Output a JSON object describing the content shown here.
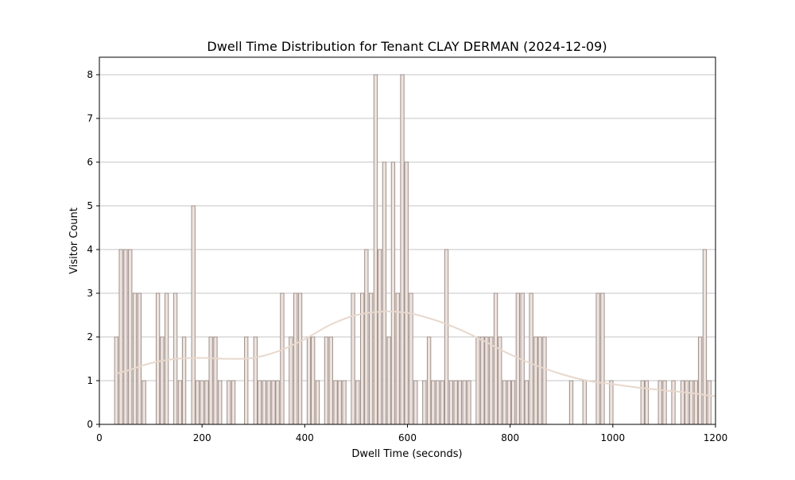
{
  "chart_data": {
    "type": "bar",
    "subtype": "histogram-with-density-curve",
    "title": "Dwell Time Distribution for Tenant CLAY DERMAN (2024-12-09)",
    "xlabel": "Dwell Time (seconds)",
    "ylabel": "Visitor Count",
    "xlim": [
      0,
      1200
    ],
    "ylim": [
      0,
      8.4
    ],
    "xticks": [
      0,
      200,
      400,
      600,
      800,
      1000,
      1200
    ],
    "yticks": [
      0,
      1,
      2,
      3,
      4,
      5,
      6,
      7,
      8
    ],
    "grid": "horizontal",
    "bin_width": 8.6,
    "colors": {
      "bar_fill": "#efe3de",
      "bar_edge": "#9e918d",
      "curve": "#e8d8cd",
      "grid": "#c4c4c4"
    },
    "bins": [
      {
        "x": 33,
        "count": 2
      },
      {
        "x": 42,
        "count": 4
      },
      {
        "x": 51,
        "count": 4
      },
      {
        "x": 60,
        "count": 4
      },
      {
        "x": 69,
        "count": 3
      },
      {
        "x": 78,
        "count": 3
      },
      {
        "x": 87,
        "count": 1
      },
      {
        "x": 114,
        "count": 3
      },
      {
        "x": 122,
        "count": 2
      },
      {
        "x": 131,
        "count": 3
      },
      {
        "x": 148,
        "count": 3
      },
      {
        "x": 157,
        "count": 1
      },
      {
        "x": 165,
        "count": 2
      },
      {
        "x": 183,
        "count": 5
      },
      {
        "x": 191,
        "count": 1
      },
      {
        "x": 200,
        "count": 1
      },
      {
        "x": 209,
        "count": 1
      },
      {
        "x": 217,
        "count": 2
      },
      {
        "x": 226,
        "count": 2
      },
      {
        "x": 235,
        "count": 1
      },
      {
        "x": 252,
        "count": 1
      },
      {
        "x": 261,
        "count": 1
      },
      {
        "x": 286,
        "count": 2
      },
      {
        "x": 304,
        "count": 2
      },
      {
        "x": 312,
        "count": 1
      },
      {
        "x": 321,
        "count": 1
      },
      {
        "x": 330,
        "count": 1
      },
      {
        "x": 339,
        "count": 1
      },
      {
        "x": 347,
        "count": 1
      },
      {
        "x": 356,
        "count": 3
      },
      {
        "x": 373,
        "count": 2
      },
      {
        "x": 382,
        "count": 3
      },
      {
        "x": 391,
        "count": 3
      },
      {
        "x": 408,
        "count": 2
      },
      {
        "x": 416,
        "count": 2
      },
      {
        "x": 425,
        "count": 1
      },
      {
        "x": 442,
        "count": 2
      },
      {
        "x": 451,
        "count": 2
      },
      {
        "x": 460,
        "count": 1
      },
      {
        "x": 468,
        "count": 1
      },
      {
        "x": 477,
        "count": 1
      },
      {
        "x": 494,
        "count": 3
      },
      {
        "x": 503,
        "count": 1
      },
      {
        "x": 512,
        "count": 3
      },
      {
        "x": 520,
        "count": 4
      },
      {
        "x": 529,
        "count": 3
      },
      {
        "x": 538,
        "count": 8
      },
      {
        "x": 546,
        "count": 4
      },
      {
        "x": 555,
        "count": 6
      },
      {
        "x": 564,
        "count": 2
      },
      {
        "x": 572,
        "count": 6
      },
      {
        "x": 581,
        "count": 3
      },
      {
        "x": 590,
        "count": 8
      },
      {
        "x": 598,
        "count": 6
      },
      {
        "x": 607,
        "count": 3
      },
      {
        "x": 616,
        "count": 1
      },
      {
        "x": 633,
        "count": 1
      },
      {
        "x": 642,
        "count": 2
      },
      {
        "x": 650,
        "count": 1
      },
      {
        "x": 659,
        "count": 1
      },
      {
        "x": 668,
        "count": 1
      },
      {
        "x": 676,
        "count": 4
      },
      {
        "x": 685,
        "count": 1
      },
      {
        "x": 694,
        "count": 1
      },
      {
        "x": 702,
        "count": 1
      },
      {
        "x": 711,
        "count": 1
      },
      {
        "x": 720,
        "count": 1
      },
      {
        "x": 737,
        "count": 2
      },
      {
        "x": 746,
        "count": 2
      },
      {
        "x": 754,
        "count": 2
      },
      {
        "x": 763,
        "count": 2
      },
      {
        "x": 772,
        "count": 3
      },
      {
        "x": 780,
        "count": 2
      },
      {
        "x": 789,
        "count": 1
      },
      {
        "x": 798,
        "count": 1
      },
      {
        "x": 806,
        "count": 1
      },
      {
        "x": 815,
        "count": 3
      },
      {
        "x": 824,
        "count": 3
      },
      {
        "x": 832,
        "count": 1
      },
      {
        "x": 841,
        "count": 3
      },
      {
        "x": 850,
        "count": 2
      },
      {
        "x": 858,
        "count": 2
      },
      {
        "x": 867,
        "count": 2
      },
      {
        "x": 919,
        "count": 1
      },
      {
        "x": 945,
        "count": 1
      },
      {
        "x": 971,
        "count": 3
      },
      {
        "x": 980,
        "count": 3
      },
      {
        "x": 997,
        "count": 1
      },
      {
        "x": 1058,
        "count": 1
      },
      {
        "x": 1066,
        "count": 1
      },
      {
        "x": 1092,
        "count": 1
      },
      {
        "x": 1101,
        "count": 1
      },
      {
        "x": 1118,
        "count": 1
      },
      {
        "x": 1136,
        "count": 1
      },
      {
        "x": 1144,
        "count": 1
      },
      {
        "x": 1153,
        "count": 1
      },
      {
        "x": 1162,
        "count": 1
      },
      {
        "x": 1170,
        "count": 2
      },
      {
        "x": 1179,
        "count": 4
      },
      {
        "x": 1188,
        "count": 1
      }
    ],
    "density_curve": [
      [
        30,
        1.15
      ],
      [
        60,
        1.25
      ],
      [
        100,
        1.4
      ],
      [
        150,
        1.5
      ],
      [
        200,
        1.52
      ],
      [
        250,
        1.5
      ],
      [
        300,
        1.52
      ],
      [
        350,
        1.68
      ],
      [
        400,
        1.95
      ],
      [
        450,
        2.28
      ],
      [
        500,
        2.5
      ],
      [
        550,
        2.58
      ],
      [
        600,
        2.55
      ],
      [
        650,
        2.4
      ],
      [
        700,
        2.18
      ],
      [
        750,
        1.9
      ],
      [
        800,
        1.6
      ],
      [
        850,
        1.35
      ],
      [
        900,
        1.15
      ],
      [
        950,
        1.0
      ],
      [
        1000,
        0.92
      ],
      [
        1050,
        0.84
      ],
      [
        1100,
        0.78
      ],
      [
        1150,
        0.72
      ],
      [
        1200,
        0.64
      ]
    ]
  }
}
